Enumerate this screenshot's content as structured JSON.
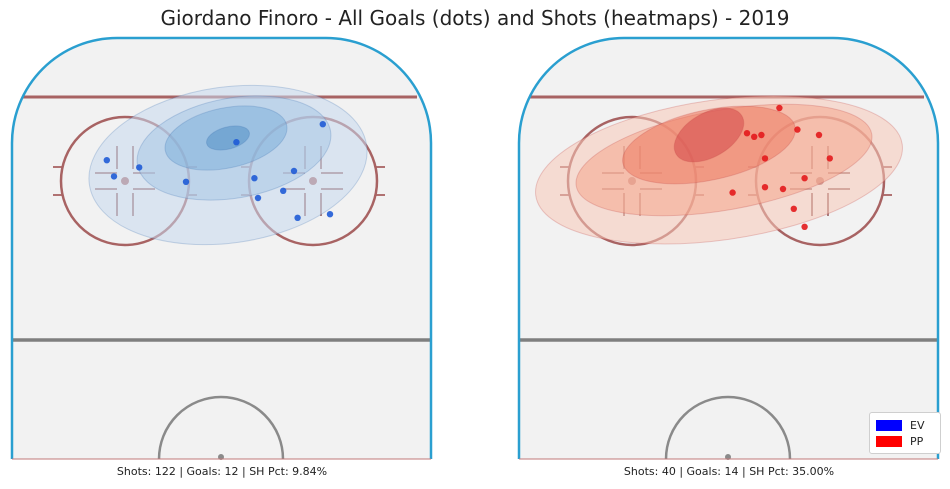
{
  "chart_data": {
    "type": "scatter",
    "title": "Giordano Finoro - All Goals (dots) and Shots (heatmaps) - 2019",
    "panels": [
      {
        "series": "EV",
        "caption": "Shots: 122 | Goals: 12 | SH Pct: 9.84%",
        "stats": {
          "shots": 122,
          "goals": 12,
          "sh_pct": 9.84
        },
        "color": "#1f5bd6",
        "heat_colors": [
          "#c6d9ee",
          "#a7c7e6",
          "#7fb0da",
          "#5592c7"
        ],
        "goals": [
          {
            "x": 80,
            "y": 69
          },
          {
            "x": 67,
            "y": 56
          },
          {
            "x": 59,
            "y": 49
          },
          {
            "x": 18,
            "y": 39
          },
          {
            "x": 54,
            "y": 29
          },
          {
            "x": 78,
            "y": 19
          },
          {
            "x": 70,
            "y": 45
          },
          {
            "x": 71,
            "y": 71
          },
          {
            "x": 27,
            "y": 43
          },
          {
            "x": 40,
            "y": 51
          },
          {
            "x": 20,
            "y": 48
          },
          {
            "x": 60,
            "y": 60
          }
        ]
      },
      {
        "series": "PP",
        "caption": "Shots: 40 | Goals: 14 | SH Pct: 35.00%",
        "stats": {
          "shots": 40,
          "goals": 14,
          "sh_pct": 35.0
        },
        "color": "#e31a1c",
        "heat_colors": [
          "#f8c9b8",
          "#f4a58c",
          "#ec7a62",
          "#d3494a"
        ],
        "goals": [
          {
            "x": 75,
            "y": 25
          },
          {
            "x": 65,
            "y": 55
          },
          {
            "x": 68,
            "y": 66
          },
          {
            "x": 71,
            "y": 76
          },
          {
            "x": 60,
            "y": 54
          },
          {
            "x": 51,
            "y": 57
          },
          {
            "x": 78,
            "y": 38
          },
          {
            "x": 55,
            "y": 24
          },
          {
            "x": 60,
            "y": 38
          },
          {
            "x": 59,
            "y": 25
          },
          {
            "x": 57,
            "y": 26
          },
          {
            "x": 69,
            "y": 22
          },
          {
            "x": 64,
            "y": 10
          },
          {
            "x": 71,
            "y": 49
          }
        ]
      }
    ],
    "legend": {
      "position": "bottom-right",
      "items": [
        {
          "label": "EV",
          "color": "#0000ff"
        },
        {
          "label": "PP",
          "color": "#ff0000"
        }
      ]
    },
    "colors": {
      "boards": "#2a9fd0",
      "goal_line": "#a86363",
      "circles": "#a86363",
      "blue_line": "#7f7f7f",
      "ice": "#f2f2f2"
    }
  }
}
